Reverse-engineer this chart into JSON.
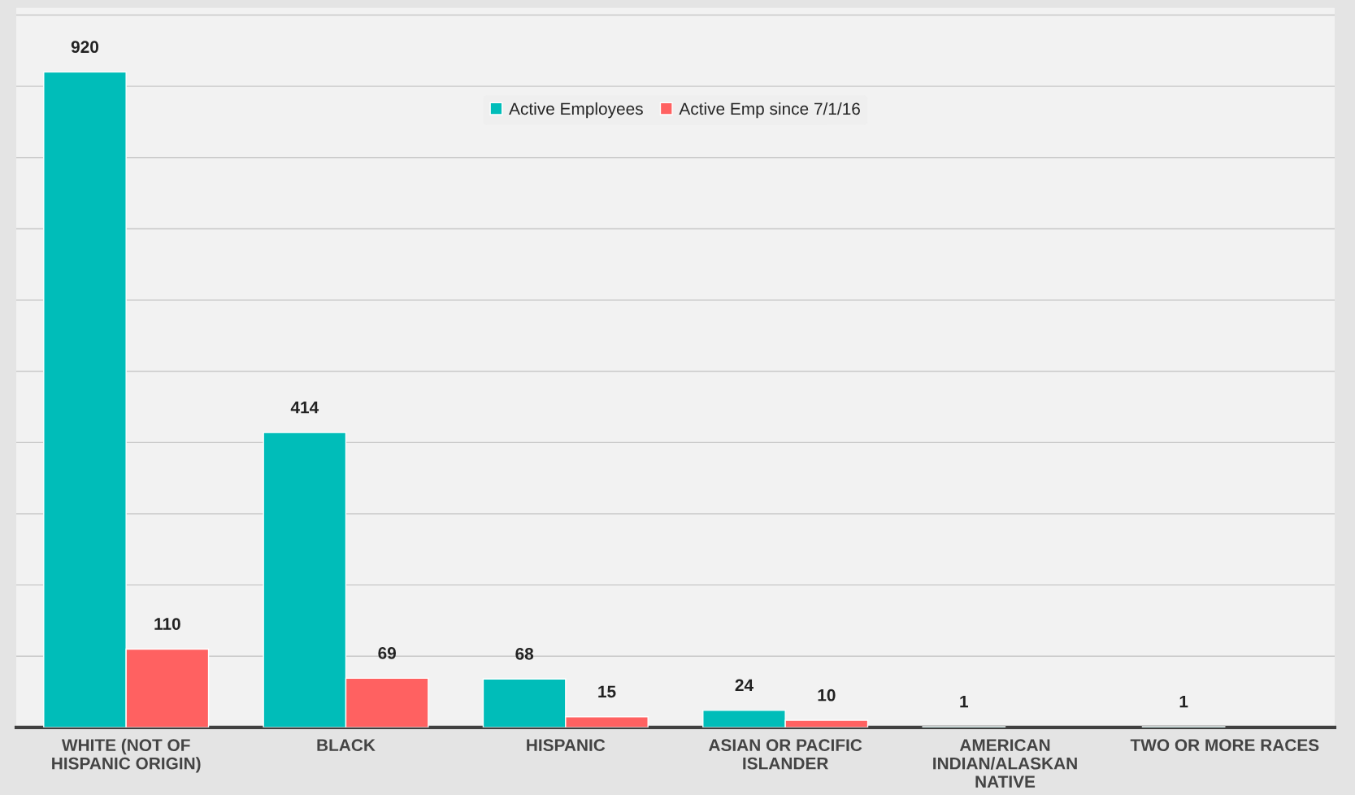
{
  "chart_data": {
    "type": "bar",
    "categories": [
      "WHITE (NOT OF HISPANIC ORIGIN)",
      "BLACK",
      "HISPANIC",
      "ASIAN OR PACIFIC ISLANDER",
      "AMERICAN INDIAN/ALASKAN NATIVE",
      "TWO OR MORE RACES"
    ],
    "series": [
      {
        "name": "Active Employees",
        "color": "#00bdb9",
        "values": [
          920,
          414,
          68,
          24,
          1,
          1
        ]
      },
      {
        "name": "Active Emp since 7/1/16",
        "color": "#ff6161",
        "values": [
          110,
          69,
          15,
          10,
          null,
          null
        ]
      }
    ],
    "ylim": [
      0,
      1010
    ],
    "yticks": [
      {
        "value": 0,
        "label": null
      },
      {
        "value": 100,
        "label": null
      },
      {
        "value": 200,
        "label": null
      },
      {
        "value": 300,
        "label": null
      },
      {
        "value": 400,
        "label": null
      },
      {
        "value": 500,
        "label": null
      },
      {
        "value": 600,
        "label": null
      },
      {
        "value": 700,
        "label": null
      },
      {
        "value": 800,
        "label": null
      },
      {
        "value": 900,
        "label": null
      },
      {
        "value": 1000,
        "label": null
      }
    ],
    "grid": "y",
    "legend": "top",
    "data_labels": true,
    "tick_labels": "x"
  }
}
